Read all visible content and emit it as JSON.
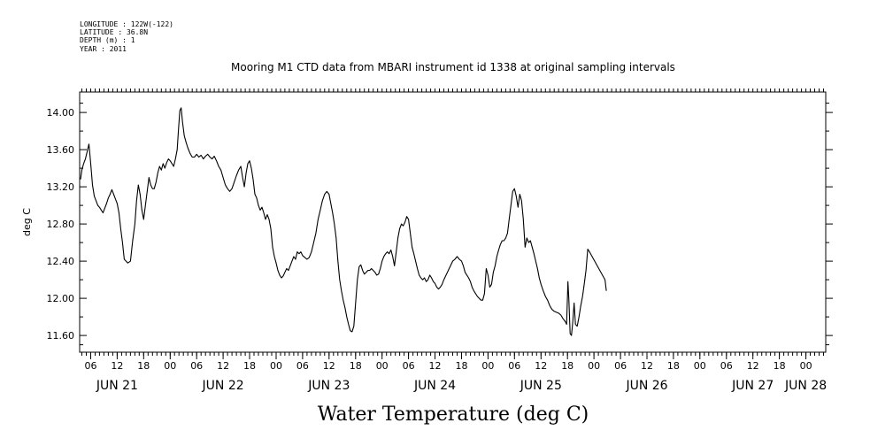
{
  "metadata": {
    "longitude": "LONGITUDE : 122W(-122)",
    "latitude": "LATITUDE : 36.8N",
    "depth": "DEPTH (m) : 1",
    "year": "YEAR : 2011"
  },
  "chart_data": {
    "type": "line",
    "title": "Mooring M1 CTD data from MBARI instrument id 1338 at original sampling intervals",
    "xlabel": "Water Temperature (deg C)",
    "ylabel": "deg C",
    "xlim": [
      3.5,
      172.5
    ],
    "ylim": [
      11.42,
      14.22
    ],
    "y_ticks": [
      11.6,
      12.0,
      12.4,
      12.8,
      13.2,
      13.6,
      14.0
    ],
    "y_tick_labels": [
      "11.60",
      "12.00",
      "12.40",
      "12.80",
      "13.20",
      "13.60",
      "14.00"
    ],
    "x_hour_labels": [
      {
        "h": 6,
        "label": "06"
      },
      {
        "h": 12,
        "label": "12"
      },
      {
        "h": 18,
        "label": "18"
      },
      {
        "h": 24,
        "label": "00"
      },
      {
        "h": 30,
        "label": "06"
      },
      {
        "h": 36,
        "label": "12"
      },
      {
        "h": 42,
        "label": "18"
      },
      {
        "h": 48,
        "label": "00"
      },
      {
        "h": 54,
        "label": "06"
      },
      {
        "h": 60,
        "label": "12"
      },
      {
        "h": 66,
        "label": "18"
      },
      {
        "h": 72,
        "label": "00"
      },
      {
        "h": 78,
        "label": "06"
      },
      {
        "h": 84,
        "label": "12"
      },
      {
        "h": 90,
        "label": "18"
      },
      {
        "h": 96,
        "label": "00"
      },
      {
        "h": 102,
        "label": "06"
      },
      {
        "h": 108,
        "label": "12"
      },
      {
        "h": 114,
        "label": "18"
      },
      {
        "h": 120,
        "label": "00"
      },
      {
        "h": 126,
        "label": "06"
      },
      {
        "h": 132,
        "label": "12"
      },
      {
        "h": 138,
        "label": "18"
      },
      {
        "h": 144,
        "label": "00"
      },
      {
        "h": 150,
        "label": "06"
      },
      {
        "h": 156,
        "label": "12"
      },
      {
        "h": 162,
        "label": "18"
      },
      {
        "h": 168,
        "label": "00"
      }
    ],
    "x_day_labels": [
      {
        "h": 12,
        "label": "JUN 21"
      },
      {
        "h": 36,
        "label": "JUN 22"
      },
      {
        "h": 60,
        "label": "JUN 23"
      },
      {
        "h": 84,
        "label": "JUN 24"
      },
      {
        "h": 108,
        "label": "JUN 25"
      },
      {
        "h": 132,
        "label": "JUN 26"
      },
      {
        "h": 156,
        "label": "JUN 27"
      },
      {
        "h": 168,
        "label": "JUN 28"
      }
    ],
    "series": [
      {
        "values": [
          [
            3.7,
            13.28
          ],
          [
            4.0,
            13.38
          ],
          [
            4.4,
            13.45
          ],
          [
            4.8,
            13.5
          ],
          [
            5.2,
            13.58
          ],
          [
            5.6,
            13.66
          ],
          [
            6.0,
            13.45
          ],
          [
            6.4,
            13.22
          ],
          [
            6.8,
            13.1
          ],
          [
            7.2,
            13.05
          ],
          [
            7.6,
            13.0
          ],
          [
            8.0,
            12.98
          ],
          [
            8.4,
            12.95
          ],
          [
            8.8,
            12.92
          ],
          [
            9.2,
            12.97
          ],
          [
            9.6,
            13.02
          ],
          [
            10.0,
            13.08
          ],
          [
            10.4,
            13.12
          ],
          [
            10.8,
            13.17
          ],
          [
            11.2,
            13.12
          ],
          [
            11.6,
            13.07
          ],
          [
            12.0,
            13.02
          ],
          [
            12.4,
            12.92
          ],
          [
            12.8,
            12.75
          ],
          [
            13.2,
            12.6
          ],
          [
            13.6,
            12.42
          ],
          [
            14.0,
            12.4
          ],
          [
            14.4,
            12.38
          ],
          [
            15.0,
            12.4
          ],
          [
            15.5,
            12.62
          ],
          [
            16.0,
            12.8
          ],
          [
            16.4,
            13.05
          ],
          [
            16.8,
            13.22
          ],
          [
            17.2,
            13.12
          ],
          [
            17.6,
            12.95
          ],
          [
            18.0,
            12.85
          ],
          [
            18.4,
            13.0
          ],
          [
            18.8,
            13.15
          ],
          [
            19.2,
            13.3
          ],
          [
            19.6,
            13.22
          ],
          [
            20.0,
            13.18
          ],
          [
            20.4,
            13.18
          ],
          [
            20.8,
            13.25
          ],
          [
            21.2,
            13.35
          ],
          [
            21.6,
            13.42
          ],
          [
            22.0,
            13.38
          ],
          [
            22.4,
            13.45
          ],
          [
            22.8,
            13.4
          ],
          [
            23.2,
            13.46
          ],
          [
            23.6,
            13.5
          ],
          [
            24.0,
            13.48
          ],
          [
            24.4,
            13.45
          ],
          [
            24.8,
            13.42
          ],
          [
            25.2,
            13.5
          ],
          [
            25.6,
            13.6
          ],
          [
            25.9,
            13.82
          ],
          [
            26.2,
            14.02
          ],
          [
            26.5,
            14.05
          ],
          [
            26.8,
            13.9
          ],
          [
            27.2,
            13.75
          ],
          [
            27.6,
            13.68
          ],
          [
            28.0,
            13.62
          ],
          [
            28.5,
            13.56
          ],
          [
            29.0,
            13.52
          ],
          [
            29.5,
            13.52
          ],
          [
            30.0,
            13.55
          ],
          [
            30.5,
            13.52
          ],
          [
            31.0,
            13.54
          ],
          [
            31.5,
            13.5
          ],
          [
            32.0,
            13.53
          ],
          [
            32.5,
            13.55
          ],
          [
            33.0,
            13.52
          ],
          [
            33.5,
            13.5
          ],
          [
            34.0,
            13.53
          ],
          [
            34.5,
            13.48
          ],
          [
            35.0,
            13.42
          ],
          [
            35.5,
            13.38
          ],
          [
            36.0,
            13.3
          ],
          [
            36.5,
            13.22
          ],
          [
            37.0,
            13.18
          ],
          [
            37.5,
            13.15
          ],
          [
            38.0,
            13.18
          ],
          [
            38.5,
            13.25
          ],
          [
            39.0,
            13.32
          ],
          [
            39.5,
            13.38
          ],
          [
            40.0,
            13.42
          ],
          [
            40.4,
            13.3
          ],
          [
            40.8,
            13.2
          ],
          [
            41.2,
            13.35
          ],
          [
            41.6,
            13.45
          ],
          [
            42.0,
            13.48
          ],
          [
            42.4,
            13.4
          ],
          [
            42.8,
            13.28
          ],
          [
            43.2,
            13.12
          ],
          [
            43.6,
            13.08
          ],
          [
            44.0,
            13.0
          ],
          [
            44.4,
            12.95
          ],
          [
            44.8,
            12.98
          ],
          [
            45.2,
            12.92
          ],
          [
            45.6,
            12.85
          ],
          [
            46.0,
            12.9
          ],
          [
            46.4,
            12.85
          ],
          [
            46.8,
            12.75
          ],
          [
            47.2,
            12.55
          ],
          [
            47.6,
            12.45
          ],
          [
            48.0,
            12.38
          ],
          [
            48.4,
            12.3
          ],
          [
            48.8,
            12.25
          ],
          [
            49.2,
            12.22
          ],
          [
            49.6,
            12.24
          ],
          [
            50.0,
            12.28
          ],
          [
            50.4,
            12.32
          ],
          [
            50.8,
            12.3
          ],
          [
            51.2,
            12.35
          ],
          [
            51.6,
            12.4
          ],
          [
            52.0,
            12.45
          ],
          [
            52.4,
            12.42
          ],
          [
            52.8,
            12.5
          ],
          [
            53.2,
            12.48
          ],
          [
            53.6,
            12.5
          ],
          [
            54.0,
            12.46
          ],
          [
            54.5,
            12.44
          ],
          [
            55.0,
            12.42
          ],
          [
            55.5,
            12.44
          ],
          [
            56.0,
            12.5
          ],
          [
            56.5,
            12.6
          ],
          [
            57.0,
            12.7
          ],
          [
            57.5,
            12.85
          ],
          [
            58.0,
            12.95
          ],
          [
            58.5,
            13.05
          ],
          [
            59.0,
            13.12
          ],
          [
            59.5,
            13.15
          ],
          [
            60.0,
            13.12
          ],
          [
            60.4,
            13.02
          ],
          [
            60.8,
            12.92
          ],
          [
            61.2,
            12.8
          ],
          [
            61.6,
            12.65
          ],
          [
            62.0,
            12.4
          ],
          [
            62.4,
            12.2
          ],
          [
            62.8,
            12.08
          ],
          [
            63.2,
            11.98
          ],
          [
            63.6,
            11.9
          ],
          [
            64.0,
            11.8
          ],
          [
            64.4,
            11.72
          ],
          [
            64.8,
            11.65
          ],
          [
            65.2,
            11.64
          ],
          [
            65.6,
            11.7
          ],
          [
            66.0,
            11.95
          ],
          [
            66.4,
            12.2
          ],
          [
            66.8,
            12.34
          ],
          [
            67.2,
            12.36
          ],
          [
            67.6,
            12.3
          ],
          [
            68.0,
            12.26
          ],
          [
            68.4,
            12.28
          ],
          [
            68.8,
            12.3
          ],
          [
            69.2,
            12.3
          ],
          [
            69.6,
            12.32
          ],
          [
            70.0,
            12.3
          ],
          [
            70.4,
            12.28
          ],
          [
            70.8,
            12.25
          ],
          [
            71.2,
            12.26
          ],
          [
            71.6,
            12.32
          ],
          [
            72.0,
            12.4
          ],
          [
            72.4,
            12.45
          ],
          [
            72.8,
            12.48
          ],
          [
            73.2,
            12.5
          ],
          [
            73.6,
            12.48
          ],
          [
            74.0,
            12.52
          ],
          [
            74.4,
            12.45
          ],
          [
            74.8,
            12.35
          ],
          [
            75.2,
            12.5
          ],
          [
            75.6,
            12.65
          ],
          [
            76.0,
            12.75
          ],
          [
            76.4,
            12.8
          ],
          [
            76.8,
            12.78
          ],
          [
            77.2,
            12.82
          ],
          [
            77.6,
            12.88
          ],
          [
            78.0,
            12.85
          ],
          [
            78.4,
            12.7
          ],
          [
            78.8,
            12.55
          ],
          [
            79.2,
            12.48
          ],
          [
            79.6,
            12.4
          ],
          [
            80.0,
            12.32
          ],
          [
            80.4,
            12.25
          ],
          [
            80.8,
            12.22
          ],
          [
            81.2,
            12.2
          ],
          [
            81.6,
            12.22
          ],
          [
            82.0,
            12.18
          ],
          [
            82.4,
            12.2
          ],
          [
            82.8,
            12.25
          ],
          [
            83.2,
            12.22
          ],
          [
            83.6,
            12.18
          ],
          [
            84.0,
            12.16
          ],
          [
            84.4,
            12.12
          ],
          [
            84.8,
            12.1
          ],
          [
            85.2,
            12.12
          ],
          [
            85.6,
            12.15
          ],
          [
            86.0,
            12.2
          ],
          [
            86.5,
            12.25
          ],
          [
            87.0,
            12.3
          ],
          [
            87.5,
            12.35
          ],
          [
            88.0,
            12.4
          ],
          [
            88.5,
            12.42
          ],
          [
            89.0,
            12.45
          ],
          [
            89.5,
            12.42
          ],
          [
            90.0,
            12.4
          ],
          [
            90.4,
            12.35
          ],
          [
            90.8,
            12.28
          ],
          [
            91.2,
            12.25
          ],
          [
            91.6,
            12.22
          ],
          [
            92.0,
            12.18
          ],
          [
            92.4,
            12.12
          ],
          [
            92.8,
            12.08
          ],
          [
            93.2,
            12.05
          ],
          [
            93.6,
            12.02
          ],
          [
            94.0,
            12.0
          ],
          [
            94.4,
            11.98
          ],
          [
            94.8,
            11.98
          ],
          [
            95.2,
            12.05
          ],
          [
            95.6,
            12.32
          ],
          [
            96.0,
            12.25
          ],
          [
            96.4,
            12.12
          ],
          [
            96.8,
            12.15
          ],
          [
            97.2,
            12.28
          ],
          [
            97.6,
            12.35
          ],
          [
            98.0,
            12.45
          ],
          [
            98.4,
            12.52
          ],
          [
            98.8,
            12.58
          ],
          [
            99.2,
            12.62
          ],
          [
            99.6,
            12.62
          ],
          [
            100.0,
            12.65
          ],
          [
            100.4,
            12.7
          ],
          [
            100.8,
            12.85
          ],
          [
            101.2,
            13.0
          ],
          [
            101.6,
            13.15
          ],
          [
            102.0,
            13.18
          ],
          [
            102.4,
            13.1
          ],
          [
            102.8,
            12.98
          ],
          [
            103.2,
            13.12
          ],
          [
            103.6,
            13.05
          ],
          [
            104.0,
            12.85
          ],
          [
            104.4,
            12.55
          ],
          [
            104.8,
            12.65
          ],
          [
            105.2,
            12.6
          ],
          [
            105.6,
            12.62
          ],
          [
            106.0,
            12.55
          ],
          [
            106.4,
            12.48
          ],
          [
            106.8,
            12.4
          ],
          [
            107.2,
            12.32
          ],
          [
            107.6,
            12.22
          ],
          [
            108.0,
            12.15
          ],
          [
            108.5,
            12.08
          ],
          [
            109.0,
            12.02
          ],
          [
            109.5,
            11.98
          ],
          [
            110.0,
            11.92
          ],
          [
            110.5,
            11.88
          ],
          [
            111.0,
            11.86
          ],
          [
            111.5,
            11.85
          ],
          [
            112.0,
            11.84
          ],
          [
            112.5,
            11.82
          ],
          [
            113.0,
            11.78
          ],
          [
            113.5,
            11.75
          ],
          [
            113.8,
            11.72
          ],
          [
            114.1,
            12.18
          ],
          [
            114.3,
            12.0
          ],
          [
            114.6,
            11.62
          ],
          [
            114.9,
            11.6
          ],
          [
            115.2,
            11.75
          ],
          [
            115.5,
            11.95
          ],
          [
            115.8,
            11.72
          ],
          [
            116.2,
            11.7
          ],
          [
            116.6,
            11.8
          ],
          [
            117.0,
            11.92
          ],
          [
            117.4,
            12.02
          ],
          [
            117.8,
            12.15
          ],
          [
            118.2,
            12.3
          ],
          [
            118.6,
            12.53
          ],
          [
            119.0,
            12.5
          ],
          [
            122.5,
            12.2
          ],
          [
            122.8,
            12.08
          ]
        ]
      }
    ]
  }
}
